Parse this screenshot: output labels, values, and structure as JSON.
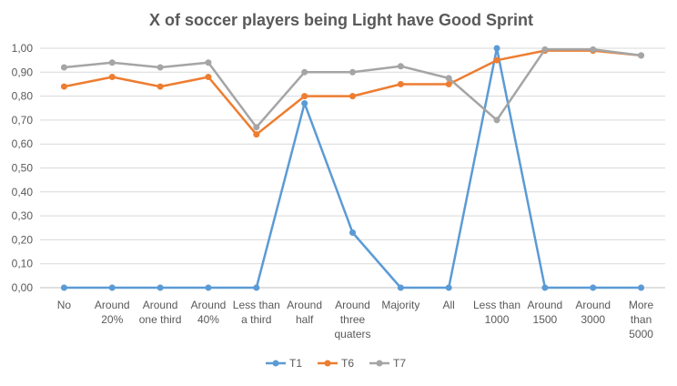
{
  "chart_data": {
    "type": "line",
    "title": "X of soccer players being Light have Good Sprint",
    "xlabel": "",
    "ylabel": "",
    "ylim": [
      0,
      1
    ],
    "yticks": [
      "0,00",
      "0,10",
      "0,20",
      "0,30",
      "0,40",
      "0,50",
      "0,60",
      "0,70",
      "0,80",
      "0,90",
      "1,00"
    ],
    "grid": true,
    "legend_position": "bottom",
    "categories": [
      [
        "No"
      ],
      [
        "Around",
        "20%"
      ],
      [
        "Around",
        "one third"
      ],
      [
        "Around",
        "40%"
      ],
      [
        "Less than",
        "a third"
      ],
      [
        "Around",
        "half"
      ],
      [
        "Around",
        "three",
        "quaters"
      ],
      [
        "Majority"
      ],
      [
        "All"
      ],
      [
        "Less than",
        "1000"
      ],
      [
        "Around",
        "1500"
      ],
      [
        "Around",
        "3000"
      ],
      [
        "More",
        "than",
        "5000"
      ]
    ],
    "series": [
      {
        "name": "T1",
        "color": "#5B9BD5",
        "values": [
          0,
          0,
          0,
          0,
          0,
          0.77,
          0.23,
          0,
          0,
          1.0,
          0,
          0,
          0
        ]
      },
      {
        "name": "T6",
        "color": "#ED7D31",
        "values": [
          0.84,
          0.88,
          0.84,
          0.88,
          0.64,
          0.8,
          0.8,
          0.85,
          0.85,
          0.95,
          0.99,
          0.99,
          0.97
        ]
      },
      {
        "name": "T7",
        "color": "#A5A5A5",
        "values": [
          0.92,
          0.94,
          0.92,
          0.94,
          0.67,
          0.9,
          0.9,
          0.925,
          0.875,
          0.7,
          0.995,
          0.995,
          0.97
        ]
      }
    ]
  }
}
